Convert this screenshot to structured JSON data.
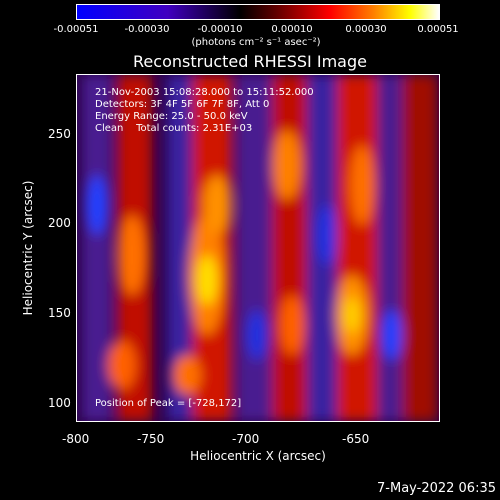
{
  "colorbar": {
    "ticks": [
      "-0.00051",
      "-0.00030",
      "-0.00010",
      "0.00010",
      "0.00030",
      "0.00051"
    ],
    "unit": "(photons cm⁻² s⁻¹ asec⁻²)"
  },
  "title": "Reconstructed RHESSI Image",
  "info": {
    "line1": "21-Nov-2003 15:08:28.000 to 15:11:52.000",
    "line2": "Detectors: 3F 4F 5F 6F 7F 8F, Att 0",
    "line3": "Energy Range: 25.0 - 50.0 keV",
    "line4": "Clean    Total counts: 2.31E+03",
    "peak": "Position of Peak = [-728,172]"
  },
  "axes": {
    "xlabel": "Heliocentric X (arcsec)",
    "ylabel": "Heliocentric Y (arcsec)",
    "xticks": [
      "-800",
      "-750",
      "-700",
      "-650"
    ],
    "yticks": [
      "250",
      "200",
      "150",
      "100"
    ]
  },
  "timestamp": "7-May-2022 06:35"
}
